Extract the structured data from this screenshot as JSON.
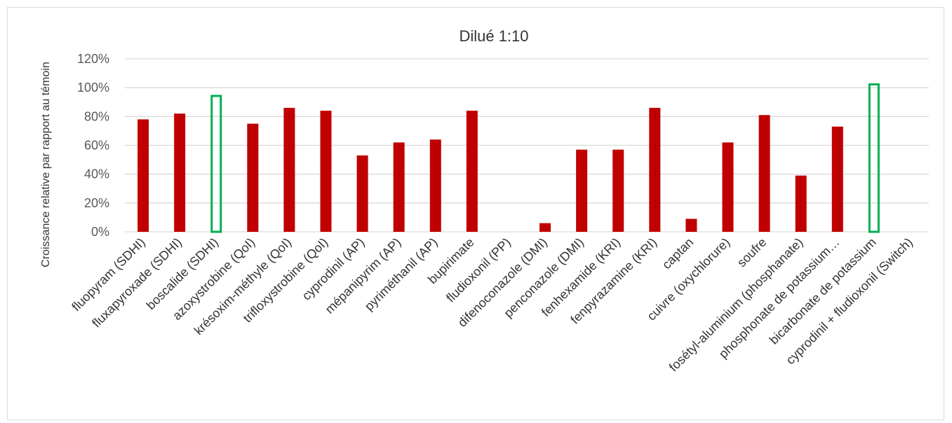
{
  "chart_data": {
    "type": "bar",
    "title": "Dilué 1:10",
    "ylabel": "Croissance relative par rapport au témoin",
    "xlabel": "",
    "ylim": [
      0,
      1.2
    ],
    "yticks": [
      0,
      0.2,
      0.4,
      0.6,
      0.8,
      1.0,
      1.2
    ],
    "ytick_labels": [
      "0%",
      "20%",
      "40%",
      "60%",
      "80%",
      "100%",
      "120%"
    ],
    "grid": true,
    "legend": "none",
    "categories": [
      "fluopyram (SDHI)",
      "fluxapyroxade (SDHI)",
      "boscalide (SDHI)",
      "azoxystrobine (QoI)",
      "krésoxim-méthyle (QoI)",
      "trifloxystrobine (QoI)",
      "cyprodinil (AP)",
      "mépanipyrim (AP)",
      "pyriméthanil (AP)",
      "bupirimate",
      "fludioxonil (PP)",
      "difenoconazole (DMI)",
      "penconazole (DMI)",
      "fenhexamide (KRI)",
      "fenpyrazamine (KRI)",
      "captan",
      "cuivre (oxychlorure)",
      "soufre",
      "fosétyl-aluminium (phosphanate)",
      "phosphonate de potassium…",
      "bicarbonate de potassium",
      "cyprodinil + fludioxonil (Switch)"
    ],
    "values": [
      0.78,
      0.82,
      0.95,
      0.75,
      0.86,
      0.84,
      0.53,
      0.62,
      0.64,
      0.84,
      0.0,
      0.06,
      0.57,
      0.57,
      0.86,
      0.09,
      0.62,
      0.81,
      0.39,
      0.73,
      1.03,
      0.0
    ],
    "highlighted": [
      false,
      false,
      true,
      false,
      false,
      false,
      false,
      false,
      false,
      false,
      false,
      false,
      false,
      false,
      false,
      false,
      false,
      false,
      false,
      false,
      true,
      false
    ],
    "colors": {
      "bar": "#c00000",
      "highlight": "#00b050",
      "grid": "#d9d9d9"
    }
  }
}
